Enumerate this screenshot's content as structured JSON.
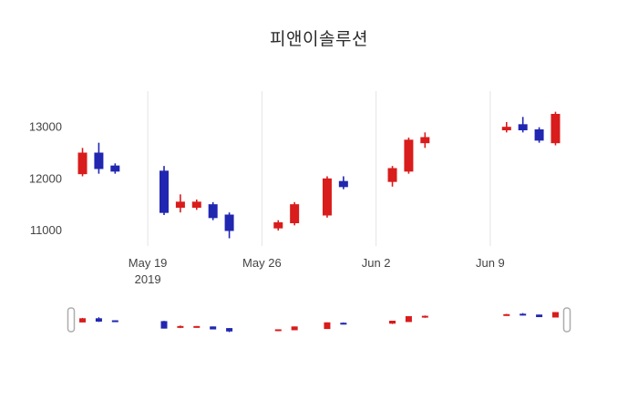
{
  "chart_data": {
    "type": "candlestick",
    "title": "피앤이솔루션",
    "increasing_color": "#d91c1c",
    "decreasing_color": "#2127b0",
    "grid_color": "#e4e4e4",
    "text_color": "#444444",
    "handle_border_color": "#adadad",
    "y_range": [
      10700,
      13700
    ],
    "y_ticks": [
      {
        "value": 11000,
        "label": "11000"
      },
      {
        "value": 12000,
        "label": "12000"
      },
      {
        "value": 13000,
        "label": "13000"
      }
    ],
    "x_ticks": [
      {
        "date": "2019-05-19",
        "label": "May 19",
        "sublabel": "2019"
      },
      {
        "date": "2019-05-26",
        "label": "May 26"
      },
      {
        "date": "2019-06-02",
        "label": "Jun 2"
      },
      {
        "date": "2019-06-09",
        "label": "Jun 9"
      }
    ],
    "candles": [
      {
        "date": "2019-05-15",
        "open": 12100,
        "high": 12600,
        "low": 12050,
        "close": 12500
      },
      {
        "date": "2019-05-16",
        "open": 12500,
        "high": 12700,
        "low": 12100,
        "close": 12200
      },
      {
        "date": "2019-05-17",
        "open": 12250,
        "high": 12300,
        "low": 12100,
        "close": 12150
      },
      {
        "date": "2019-05-20",
        "open": 12150,
        "high": 12250,
        "low": 11300,
        "close": 11350
      },
      {
        "date": "2019-05-21",
        "open": 11450,
        "high": 11700,
        "low": 11350,
        "close": 11550
      },
      {
        "date": "2019-05-22",
        "open": 11450,
        "high": 11600,
        "low": 11400,
        "close": 11550
      },
      {
        "date": "2019-05-23",
        "open": 11500,
        "high": 11550,
        "low": 11200,
        "close": 11250
      },
      {
        "date": "2019-05-24",
        "open": 11300,
        "high": 11350,
        "low": 10850,
        "close": 11000
      },
      {
        "date": "2019-05-27",
        "open": 11050,
        "high": 11200,
        "low": 11000,
        "close": 11150
      },
      {
        "date": "2019-05-28",
        "open": 11150,
        "high": 11550,
        "low": 11100,
        "close": 11500
      },
      {
        "date": "2019-05-30",
        "open": 11300,
        "high": 12050,
        "low": 11250,
        "close": 12000
      },
      {
        "date": "2019-05-31",
        "open": 11950,
        "high": 12050,
        "low": 11800,
        "close": 11850
      },
      {
        "date": "2019-06-03",
        "open": 11950,
        "high": 12250,
        "low": 11850,
        "close": 12200
      },
      {
        "date": "2019-06-04",
        "open": 12150,
        "high": 12800,
        "low": 12100,
        "close": 12750
      },
      {
        "date": "2019-06-05",
        "open": 12700,
        "high": 12900,
        "low": 12600,
        "close": 12800
      },
      {
        "date": "2019-06-10",
        "open": 12950,
        "high": 13100,
        "low": 12900,
        "close": 13000
      },
      {
        "date": "2019-06-11",
        "open": 13050,
        "high": 13200,
        "low": 12900,
        "close": 12950
      },
      {
        "date": "2019-06-12",
        "open": 12950,
        "high": 13000,
        "low": 12700,
        "close": 12750
      },
      {
        "date": "2019-06-13",
        "open": 12700,
        "high": 13300,
        "low": 12650,
        "close": 13250
      }
    ]
  }
}
